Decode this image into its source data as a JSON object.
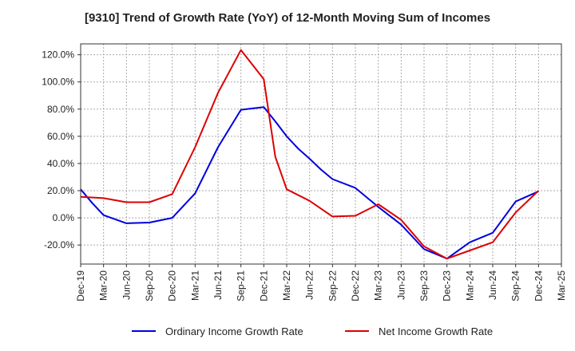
{
  "chart_data": {
    "type": "line",
    "title": "[9310]  Trend of Growth Rate (YoY) of 12-Month Moving Sum of Incomes",
    "categories": [
      "Dec-19",
      "Mar-20",
      "Jun-20",
      "Sep-20",
      "Dec-20",
      "Mar-21",
      "Jun-21",
      "Sep-21",
      "Dec-21",
      "Mar-22",
      "Jun-22",
      "Sep-22",
      "Dec-22",
      "Mar-23",
      "Jun-23",
      "Sep-23",
      "Dec-23",
      "Mar-24",
      "Jun-24",
      "Sep-24",
      "Dec-24",
      "Mar-25"
    ],
    "x_tick_labels": [
      "Dec-19",
      "Mar-20",
      "Jun-20",
      "Sep-20",
      "Dec-20",
      "Mar-21",
      "Jun-21",
      "Sep-21",
      "Dec-21",
      "Mar-22",
      "Jun-22",
      "Sep-22",
      "Dec-22",
      "Mar-23",
      "Jun-23",
      "Sep-23",
      "Dec-23",
      "Mar-24",
      "Jun-24",
      "Sep-24",
      "Dec-24",
      "Mar-25"
    ],
    "y_tick_labels": [
      "120.0%",
      "100.0%",
      "80.0%",
      "60.0%",
      "40.0%",
      "20.0%",
      "0.0%",
      "-20.0%"
    ],
    "y_ticks": [
      120,
      100,
      80,
      60,
      40,
      20,
      0,
      -20
    ],
    "ylim": [
      -34,
      128
    ],
    "grid": true,
    "legend_position": "bottom",
    "series": [
      {
        "name": "Ordinary Income Growth Rate",
        "color": "#0000dd",
        "points": [
          [
            0,
            21
          ],
          [
            0.5,
            11
          ],
          [
            1,
            2
          ],
          [
            2,
            -4
          ],
          [
            3,
            -3.5
          ],
          [
            4,
            0
          ],
          [
            5,
            18
          ],
          [
            6,
            52
          ],
          [
            7,
            79.5
          ],
          [
            8,
            81.5
          ],
          [
            8.5,
            71
          ],
          [
            9,
            60
          ],
          [
            9.5,
            51
          ],
          [
            10,
            43.5
          ],
          [
            10.5,
            35.5
          ],
          [
            11,
            28.5
          ],
          [
            12,
            22
          ],
          [
            13,
            8
          ],
          [
            14,
            -5
          ],
          [
            15,
            -23
          ],
          [
            16,
            -30
          ],
          [
            17,
            -18
          ],
          [
            18,
            -11
          ],
          [
            19,
            12
          ],
          [
            20,
            19.5
          ]
        ]
      },
      {
        "name": "Net Income Growth Rate",
        "color": "#dd0000",
        "points": [
          [
            0,
            15.5
          ],
          [
            1,
            14.5
          ],
          [
            2,
            11.5
          ],
          [
            3,
            11.5
          ],
          [
            4,
            17.5
          ],
          [
            5,
            52
          ],
          [
            6,
            92
          ],
          [
            7,
            123.5
          ],
          [
            8,
            102
          ],
          [
            8.5,
            45
          ],
          [
            9,
            21
          ],
          [
            10,
            12.5
          ],
          [
            11,
            1
          ],
          [
            12,
            1.5
          ],
          [
            13,
            10
          ],
          [
            14,
            -1.5
          ],
          [
            15,
            -21
          ],
          [
            16,
            -30
          ],
          [
            17,
            -24
          ],
          [
            18,
            -18
          ],
          [
            19,
            4
          ],
          [
            20,
            20
          ]
        ]
      }
    ]
  }
}
